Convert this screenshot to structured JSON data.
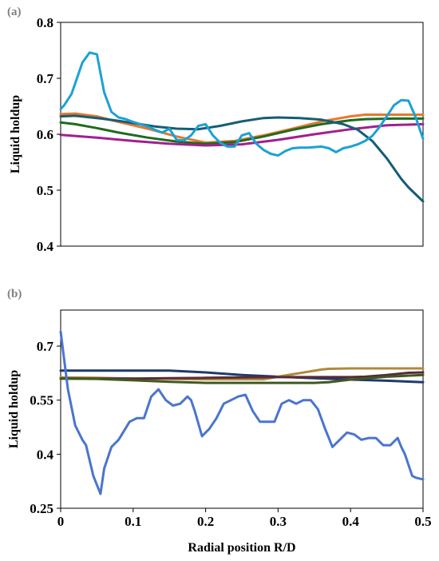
{
  "chart_data": [
    {
      "type": "line",
      "panel_label": "(a)",
      "xlim": [
        0,
        0.5
      ],
      "ylim": [
        0.4,
        0.8
      ],
      "ylabel": "Liquid holdup",
      "yticks": [
        "0.8",
        "0.7",
        "0.6",
        "0.5",
        "0.4"
      ],
      "ytick_values": [
        0.8,
        0.7,
        0.6,
        0.5,
        0.4
      ],
      "grid": false,
      "series": [
        {
          "color": "#E8772E",
          "x": [
            0,
            0.02,
            0.05,
            0.08,
            0.12,
            0.16,
            0.2,
            0.24,
            0.28,
            0.32,
            0.36,
            0.4,
            0.42,
            0.46,
            0.5
          ],
          "y": [
            0.636,
            0.637,
            0.632,
            0.622,
            0.61,
            0.596,
            0.585,
            0.588,
            0.598,
            0.61,
            0.623,
            0.632,
            0.635,
            0.635,
            0.635
          ]
        },
        {
          "color": "#1F6B1F",
          "x": [
            0,
            0.02,
            0.05,
            0.08,
            0.12,
            0.16,
            0.2,
            0.24,
            0.28,
            0.32,
            0.36,
            0.4,
            0.42,
            0.46,
            0.5
          ],
          "y": [
            0.621,
            0.618,
            0.611,
            0.603,
            0.594,
            0.587,
            0.583,
            0.586,
            0.596,
            0.608,
            0.618,
            0.625,
            0.627,
            0.628,
            0.628
          ]
        },
        {
          "color": "#A0208F",
          "x": [
            0,
            0.05,
            0.1,
            0.15,
            0.2,
            0.25,
            0.3,
            0.35,
            0.4,
            0.45,
            0.5
          ],
          "y": [
            0.599,
            0.594,
            0.588,
            0.583,
            0.58,
            0.582,
            0.59,
            0.6,
            0.609,
            0.616,
            0.618
          ]
        },
        {
          "color": "#155E75",
          "x": [
            0,
            0.02,
            0.05,
            0.08,
            0.1,
            0.13,
            0.16,
            0.19,
            0.22,
            0.25,
            0.28,
            0.3,
            0.33,
            0.36,
            0.39,
            0.41,
            0.43,
            0.45,
            0.47,
            0.48,
            0.5
          ],
          "y": [
            0.632,
            0.633,
            0.629,
            0.624,
            0.62,
            0.614,
            0.61,
            0.609,
            0.615,
            0.623,
            0.629,
            0.63,
            0.629,
            0.626,
            0.618,
            0.608,
            0.588,
            0.557,
            0.52,
            0.505,
            0.48
          ]
        },
        {
          "color": "#1BA1D6",
          "x": [
            0,
            0.005,
            0.015,
            0.03,
            0.04,
            0.05,
            0.06,
            0.07,
            0.08,
            0.09,
            0.1,
            0.11,
            0.12,
            0.13,
            0.14,
            0.15,
            0.16,
            0.17,
            0.18,
            0.19,
            0.2,
            0.21,
            0.22,
            0.23,
            0.24,
            0.25,
            0.26,
            0.27,
            0.28,
            0.29,
            0.3,
            0.31,
            0.32,
            0.33,
            0.34,
            0.35,
            0.36,
            0.37,
            0.38,
            0.39,
            0.4,
            0.41,
            0.42,
            0.43,
            0.44,
            0.45,
            0.46,
            0.47,
            0.48,
            0.49,
            0.5
          ],
          "y": [
            0.645,
            0.652,
            0.672,
            0.728,
            0.746,
            0.743,
            0.675,
            0.64,
            0.63,
            0.627,
            0.622,
            0.618,
            0.614,
            0.608,
            0.603,
            0.61,
            0.59,
            0.589,
            0.598,
            0.615,
            0.618,
            0.598,
            0.585,
            0.578,
            0.578,
            0.598,
            0.602,
            0.583,
            0.572,
            0.565,
            0.562,
            0.57,
            0.575,
            0.576,
            0.576,
            0.577,
            0.578,
            0.575,
            0.568,
            0.575,
            0.578,
            0.582,
            0.588,
            0.597,
            0.613,
            0.632,
            0.652,
            0.661,
            0.66,
            0.63,
            0.592
          ]
        }
      ]
    },
    {
      "type": "line",
      "panel_label": "(b)",
      "xlim": [
        0,
        0.5
      ],
      "ylim": [
        0.25,
        0.8
      ],
      "xlabel": "Radial position R/D",
      "ylabel": "Liquid holdup",
      "xticks": [
        "0",
        "0.1",
        "0.2",
        "0.3",
        "0.4",
        "0.5"
      ],
      "xtick_values": [
        0,
        0.1,
        0.2,
        0.3,
        0.4,
        0.5
      ],
      "yticks": [
        "0.7",
        "0.55",
        "0.4",
        "0.25"
      ],
      "ytick_values": [
        0.7,
        0.55,
        0.4,
        0.25
      ],
      "grid": false,
      "series": [
        {
          "color": "#1F3A6B",
          "x": [
            0,
            0.05,
            0.1,
            0.15,
            0.2,
            0.25,
            0.3,
            0.35,
            0.4,
            0.45,
            0.5
          ],
          "y": [
            0.632,
            0.632,
            0.632,
            0.632,
            0.627,
            0.62,
            0.615,
            0.611,
            0.607,
            0.604,
            0.6
          ]
        },
        {
          "color": "#B08A3A",
          "x": [
            0,
            0.05,
            0.1,
            0.15,
            0.2,
            0.25,
            0.28,
            0.3,
            0.33,
            0.36,
            0.37,
            0.4,
            0.45,
            0.5
          ],
          "y": [
            0.613,
            0.612,
            0.61,
            0.609,
            0.608,
            0.608,
            0.608,
            0.615,
            0.625,
            0.635,
            0.637,
            0.638,
            0.638,
            0.638
          ]
        },
        {
          "color": "#5A2A3A",
          "x": [
            0,
            0.05,
            0.1,
            0.15,
            0.2,
            0.25,
            0.3,
            0.35,
            0.4,
            0.42,
            0.45,
            0.48,
            0.5
          ],
          "y": [
            0.61,
            0.61,
            0.61,
            0.611,
            0.612,
            0.613,
            0.614,
            0.614,
            0.614,
            0.615,
            0.62,
            0.626,
            0.627
          ]
        },
        {
          "color": "#3F5A1F",
          "x": [
            0,
            0.05,
            0.1,
            0.15,
            0.2,
            0.25,
            0.3,
            0.35,
            0.37,
            0.4,
            0.45,
            0.5
          ],
          "y": [
            0.61,
            0.609,
            0.605,
            0.601,
            0.598,
            0.598,
            0.598,
            0.598,
            0.6,
            0.607,
            0.615,
            0.62
          ]
        },
        {
          "color": "#4A74CF",
          "x": [
            0,
            0.01,
            0.02,
            0.03,
            0.035,
            0.045,
            0.055,
            0.06,
            0.07,
            0.08,
            0.095,
            0.105,
            0.115,
            0.125,
            0.135,
            0.145,
            0.155,
            0.165,
            0.175,
            0.18,
            0.185,
            0.195,
            0.205,
            0.215,
            0.225,
            0.235,
            0.245,
            0.255,
            0.265,
            0.275,
            0.285,
            0.295,
            0.305,
            0.315,
            0.32,
            0.325,
            0.335,
            0.345,
            0.355,
            0.365,
            0.375,
            0.385,
            0.395,
            0.405,
            0.415,
            0.425,
            0.435,
            0.445,
            0.455,
            0.465,
            0.47,
            0.475,
            0.485,
            0.49,
            0.5
          ],
          "y": [
            0.74,
            0.58,
            0.48,
            0.44,
            0.425,
            0.34,
            0.29,
            0.36,
            0.42,
            0.44,
            0.49,
            0.5,
            0.5,
            0.56,
            0.58,
            0.55,
            0.535,
            0.54,
            0.56,
            0.55,
            0.52,
            0.45,
            0.47,
            0.5,
            0.54,
            0.55,
            0.56,
            0.565,
            0.52,
            0.49,
            0.49,
            0.49,
            0.54,
            0.55,
            0.545,
            0.54,
            0.55,
            0.55,
            0.525,
            0.47,
            0.42,
            0.44,
            0.46,
            0.455,
            0.44,
            0.445,
            0.445,
            0.425,
            0.425,
            0.445,
            0.42,
            0.4,
            0.34,
            0.335,
            0.33
          ]
        }
      ]
    }
  ]
}
